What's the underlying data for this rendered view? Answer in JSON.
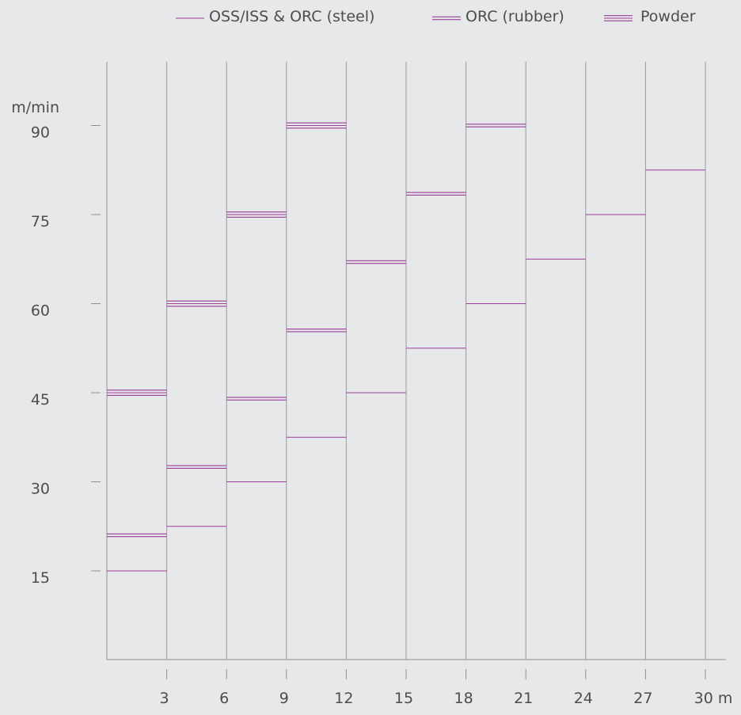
{
  "chart_data": {
    "type": "line",
    "ylabel": "m/min",
    "x_unit": "m",
    "x_ticks": [
      3,
      6,
      9,
      12,
      15,
      18,
      21,
      24,
      27,
      30
    ],
    "x_tick_labels": [
      "3",
      "6",
      "9",
      "12",
      "15",
      "18",
      "21",
      "24",
      "27",
      "30 m"
    ],
    "y_ticks": [
      15,
      30,
      45,
      60,
      75,
      90
    ],
    "y_tick_labels": [
      "15",
      "30",
      "45",
      "60",
      "75",
      "90"
    ],
    "xlim": [
      0,
      31
    ],
    "ylim": [
      0,
      100
    ],
    "grid": "vertical",
    "legend_position": "top-right",
    "line_color": "#9b3c9b",
    "series": [
      {
        "name": "OSS/ISS & ORC (steel)",
        "lines": 1,
        "segments": [
          {
            "x_start": 0,
            "x_end": 3,
            "y": 15
          },
          {
            "x_start": 3,
            "x_end": 6,
            "y": 22.5
          },
          {
            "x_start": 6,
            "x_end": 9,
            "y": 30
          },
          {
            "x_start": 9,
            "x_end": 12,
            "y": 37.5
          },
          {
            "x_start": 12,
            "x_end": 15,
            "y": 45
          },
          {
            "x_start": 15,
            "x_end": 18,
            "y": 52.5
          },
          {
            "x_start": 18,
            "x_end": 21,
            "y": 60
          },
          {
            "x_start": 21,
            "x_end": 24,
            "y": 67.5
          },
          {
            "x_start": 24,
            "x_end": 27,
            "y": 75
          },
          {
            "x_start": 27,
            "x_end": 30,
            "y": 82.5
          }
        ]
      },
      {
        "name": "ORC (rubber)",
        "lines": 2,
        "segments": [
          {
            "x_start": 0,
            "x_end": 3,
            "y": 21
          },
          {
            "x_start": 3,
            "x_end": 6,
            "y": 32.5
          },
          {
            "x_start": 6,
            "x_end": 9,
            "y": 44
          },
          {
            "x_start": 9,
            "x_end": 12,
            "y": 55.5
          },
          {
            "x_start": 12,
            "x_end": 15,
            "y": 67
          },
          {
            "x_start": 15,
            "x_end": 18,
            "y": 78.5
          },
          {
            "x_start": 18,
            "x_end": 21,
            "y": 90
          }
        ]
      },
      {
        "name": "Powder",
        "lines": 3,
        "segments": [
          {
            "x_start": 0,
            "x_end": 3,
            "y": 45
          },
          {
            "x_start": 3,
            "x_end": 6,
            "y": 60
          },
          {
            "x_start": 6,
            "x_end": 9,
            "y": 75
          },
          {
            "x_start": 9,
            "x_end": 12,
            "y": 90
          }
        ]
      }
    ]
  }
}
